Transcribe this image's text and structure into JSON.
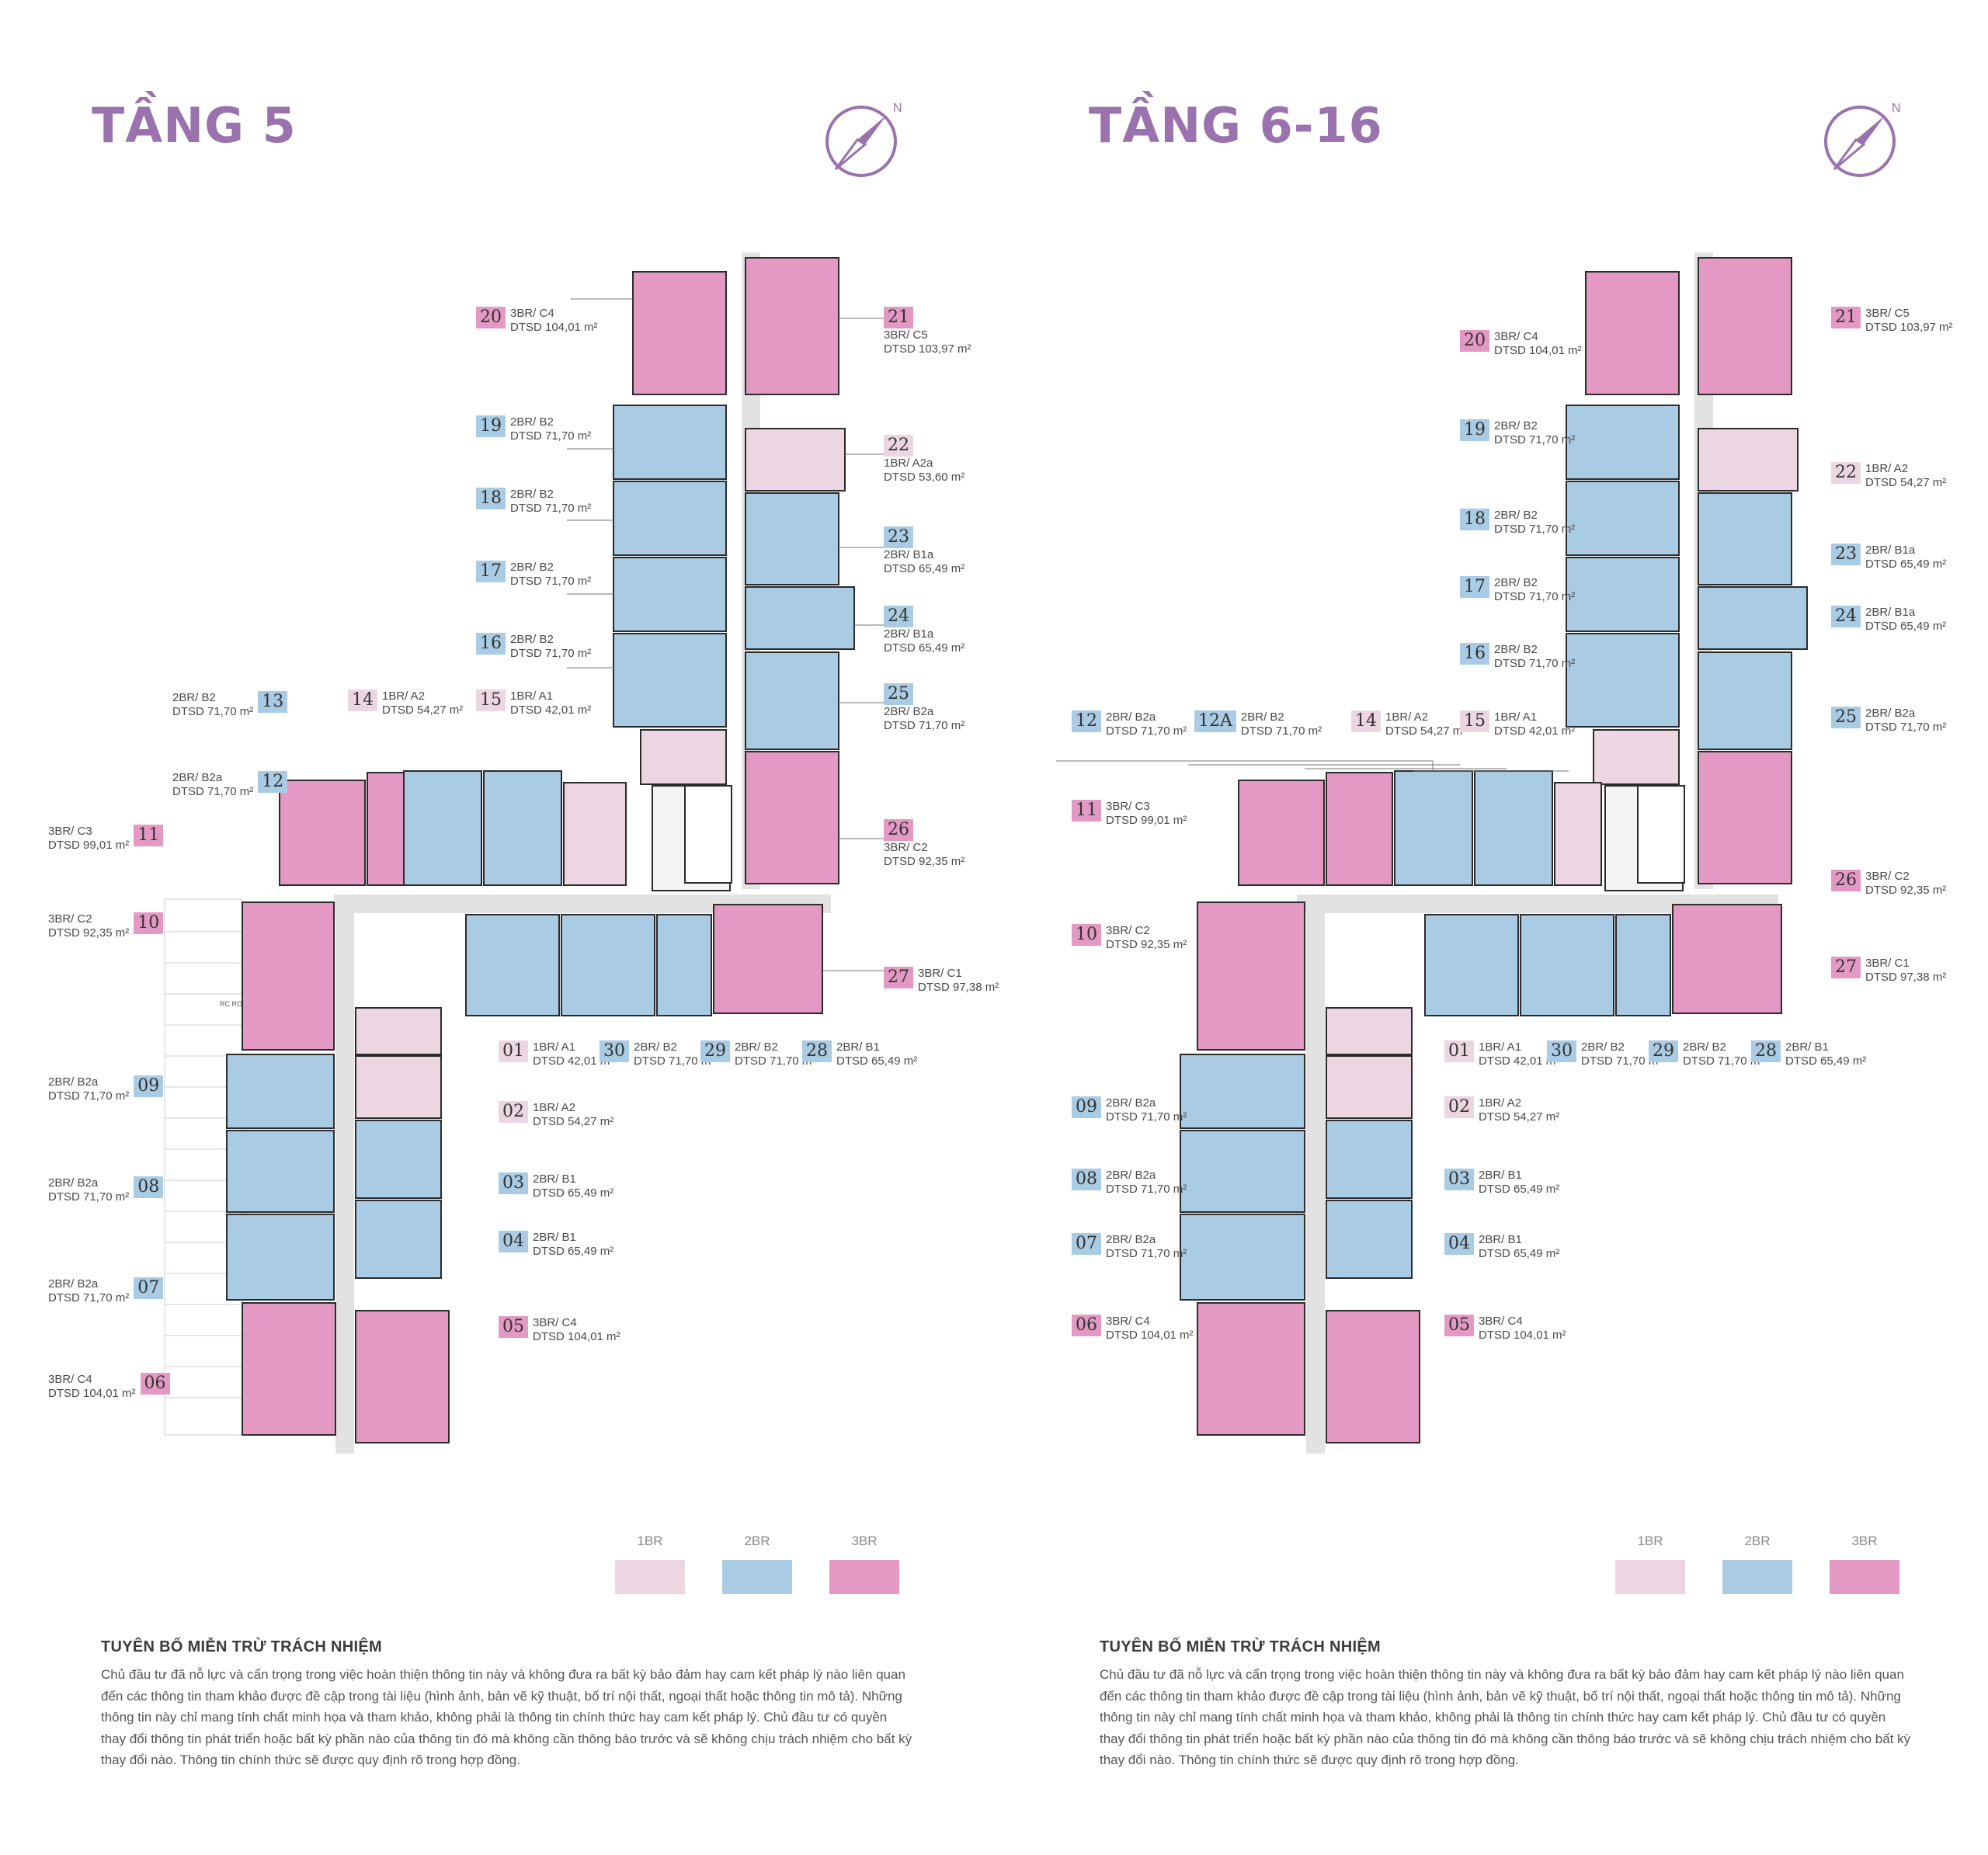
{
  "colors": {
    "title": "#9a72ad",
    "br1": "#ecd6e2",
    "br2": "#a9cbe3",
    "br3": "#e399c3",
    "corridor": "#e2e2e2",
    "wall": "#2b2b2b",
    "facade": "#bdbdbd"
  },
  "legend": {
    "br1": "1BR",
    "br2": "2BR",
    "br3": "3BR"
  },
  "disclaimer": {
    "heading": "TUYÊN BỐ MIỄN TRỪ TRÁCH NHIỆM",
    "body": "Chủ đầu tư đã nỗ lực và cẩn trọng trong việc hoàn thiện thông tin này và không đưa ra bất kỳ bảo đảm hay cam kết pháp lý nào liên quan đến các thông tin tham khảo được đề cập trong tài liệu (hình ảnh, bản vẽ kỹ thuật, bố trí nội thất, ngoại thất hoặc thông tin mô tả). Những thông tin này chỉ mang tính chất minh họa và tham khảo, không phải là thông tin chính thức hay cam kết pháp lý. Chủ đầu tư có quyền thay đổi thông tin phát triển hoặc bất kỳ phần nào của thông tin đó mà không cần thông báo trước và sẽ không chịu trách nhiệm cho bất kỳ thay đổi nào. Thông tin chính thức sẽ được quy định rõ trong hợp đồng."
  },
  "panels": [
    {
      "title": "TẦNG 5",
      "compass_icon": "compass-north-icon",
      "units": [
        {
          "no": "20",
          "type": "3BR/ C4",
          "area": "DTSD 104,01 m²",
          "cls": "n3"
        },
        {
          "no": "21",
          "type": "3BR/ C5",
          "area": "DTSD 103,97 m²",
          "cls": "n3"
        },
        {
          "no": "19",
          "type": "2BR/ B2",
          "area": "DTSD 71,70 m²",
          "cls": "n2"
        },
        {
          "no": "22",
          "type": "1BR/ A2a",
          "area": "DTSD 53,60 m²",
          "cls": "n1"
        },
        {
          "no": "18",
          "type": "2BR/ B2",
          "area": "DTSD 71,70 m²",
          "cls": "n2"
        },
        {
          "no": "23",
          "type": "2BR/ B1a",
          "area": "DTSD 65,49 m²",
          "cls": "n2"
        },
        {
          "no": "17",
          "type": "2BR/ B2",
          "area": "DTSD 71,70 m²",
          "cls": "n2"
        },
        {
          "no": "24",
          "type": "2BR/ B1a",
          "area": "DTSD 65,49 m²",
          "cls": "n2"
        },
        {
          "no": "16",
          "type": "2BR/ B2",
          "area": "DTSD 71,70 m²",
          "cls": "n2"
        },
        {
          "no": "25",
          "type": "2BR/ B2a",
          "area": "DTSD 71,70 m²",
          "cls": "n2"
        },
        {
          "no": "13",
          "type": "2BR/ B2",
          "area": "DTSD 71,70 m²",
          "cls": "n2"
        },
        {
          "no": "14",
          "type": "1BR/ A2",
          "area": "DTSD 54,27 m²",
          "cls": "n1"
        },
        {
          "no": "15",
          "type": "1BR/ A1",
          "area": "DTSD 42,01 m²",
          "cls": "n1"
        },
        {
          "no": "12",
          "type": "2BR/ B2a",
          "area": "DTSD 71,70 m²",
          "cls": "n2"
        },
        {
          "no": "26",
          "type": "3BR/ C2",
          "area": "DTSD 92,35 m²",
          "cls": "n3"
        },
        {
          "no": "11",
          "type": "3BR/ C3",
          "area": "DTSD 99,01 m²",
          "cls": "n3"
        },
        {
          "no": "10",
          "type": "3BR/ C2",
          "area": "DTSD 92,35 m²",
          "cls": "n3"
        },
        {
          "no": "27",
          "type": "3BR/ C1",
          "area": "DTSD 97,38 m²",
          "cls": "n3"
        },
        {
          "no": "01",
          "type": "1BR/ A1",
          "area": "DTSD 42,01 m²",
          "cls": "n1"
        },
        {
          "no": "30",
          "type": "2BR/ B2",
          "area": "DTSD 71,70 m²",
          "cls": "n2"
        },
        {
          "no": "29",
          "type": "2BR/ B2",
          "area": "DTSD 71,70 m²",
          "cls": "n2"
        },
        {
          "no": "28",
          "type": "2BR/ B1",
          "area": "DTSD 65,49 m²",
          "cls": "n2"
        },
        {
          "no": "09",
          "type": "2BR/ B2a",
          "area": "DTSD 71,70 m²",
          "cls": "n2"
        },
        {
          "no": "02",
          "type": "1BR/ A2",
          "area": "DTSD 54,27 m²",
          "cls": "n1"
        },
        {
          "no": "08",
          "type": "2BR/ B2a",
          "area": "DTSD 71,70 m²",
          "cls": "n2"
        },
        {
          "no": "03",
          "type": "2BR/ B1",
          "area": "DTSD 65,49 m²",
          "cls": "n2"
        },
        {
          "no": "04",
          "type": "2BR/ B1",
          "area": "DTSD 65,49 m²",
          "cls": "n2"
        },
        {
          "no": "07",
          "type": "2BR/ B2a",
          "area": "DTSD 71,70 m²",
          "cls": "n2"
        },
        {
          "no": "05",
          "type": "3BR/ C4",
          "area": "DTSD 104,01 m²",
          "cls": "n3"
        },
        {
          "no": "06",
          "type": "3BR/ C4",
          "area": "DTSD 104,01 m²",
          "cls": "n3"
        }
      ],
      "roof_label": "RC ROOF"
    },
    {
      "title": "TẦNG 6-16",
      "compass_icon": "compass-north-icon",
      "units": [
        {
          "no": "20",
          "type": "3BR/ C4",
          "area": "DTSD 104,01 m²",
          "cls": "n3"
        },
        {
          "no": "21",
          "type": "3BR/ C5",
          "area": "DTSD 103,97 m²",
          "cls": "n3"
        },
        {
          "no": "19",
          "type": "2BR/ B2",
          "area": "DTSD 71,70 m²",
          "cls": "n2"
        },
        {
          "no": "22",
          "type": "1BR/ A2",
          "area": "DTSD 54,27 m²",
          "cls": "n1"
        },
        {
          "no": "18",
          "type": "2BR/ B2",
          "area": "DTSD 71,70 m²",
          "cls": "n2"
        },
        {
          "no": "23",
          "type": "2BR/ B1a",
          "area": "DTSD 65,49 m²",
          "cls": "n2"
        },
        {
          "no": "17",
          "type": "2BR/ B2",
          "area": "DTSD 71,70 m²",
          "cls": "n2"
        },
        {
          "no": "24",
          "type": "2BR/ B1a",
          "area": "DTSD 65,49 m²",
          "cls": "n2"
        },
        {
          "no": "16",
          "type": "2BR/ B2",
          "area": "DTSD 71,70 m²",
          "cls": "n2"
        },
        {
          "no": "25",
          "type": "2BR/ B2a",
          "area": "DTSD 71,70 m²",
          "cls": "n2"
        },
        {
          "no": "12",
          "type": "2BR/ B2a",
          "area": "DTSD 71,70 m²",
          "cls": "n2"
        },
        {
          "no": "12A",
          "type": "2BR/ B2",
          "area": "DTSD 71,70 m²",
          "cls": "n2"
        },
        {
          "no": "14",
          "type": "1BR/ A2",
          "area": "DTSD 54,27 m²",
          "cls": "n1"
        },
        {
          "no": "15",
          "type": "1BR/ A1",
          "area": "DTSD 42,01 m²",
          "cls": "n1"
        },
        {
          "no": "11",
          "type": "3BR/ C3",
          "area": "DTSD 99,01 m²",
          "cls": "n3"
        },
        {
          "no": "26",
          "type": "3BR/ C2",
          "area": "DTSD 92,35 m²",
          "cls": "n3"
        },
        {
          "no": "10",
          "type": "3BR/ C2",
          "area": "DTSD 92,35 m²",
          "cls": "n3"
        },
        {
          "no": "27",
          "type": "3BR/ C1",
          "area": "DTSD 97,38 m²",
          "cls": "n3"
        },
        {
          "no": "01",
          "type": "1BR/ A1",
          "area": "DTSD 42,01 m²",
          "cls": "n1"
        },
        {
          "no": "30",
          "type": "2BR/ B2",
          "area": "DTSD 71,70 m²",
          "cls": "n2"
        },
        {
          "no": "29",
          "type": "2BR/ B2",
          "area": "DTSD 71,70 m²",
          "cls": "n2"
        },
        {
          "no": "28",
          "type": "2BR/ B1",
          "area": "DTSD 65,49 m²",
          "cls": "n2"
        },
        {
          "no": "09",
          "type": "2BR/ B2a",
          "area": "DTSD 71,70 m²",
          "cls": "n2"
        },
        {
          "no": "02",
          "type": "1BR/ A2",
          "area": "DTSD 54,27 m²",
          "cls": "n1"
        },
        {
          "no": "08",
          "type": "2BR/ B2a",
          "area": "DTSD 71,70 m²",
          "cls": "n2"
        },
        {
          "no": "03",
          "type": "2BR/ B1",
          "area": "DTSD 65,49 m²",
          "cls": "n2"
        },
        {
          "no": "07",
          "type": "2BR/ B2a",
          "area": "DTSD 71,70 m²",
          "cls": "n2"
        },
        {
          "no": "04",
          "type": "2BR/ B1",
          "area": "DTSD 65,49 m²",
          "cls": "n2"
        },
        {
          "no": "06",
          "type": "3BR/ C4",
          "area": "DTSD 104,01 m²",
          "cls": "n3"
        },
        {
          "no": "05",
          "type": "3BR/ C4",
          "area": "DTSD 104,01 m²",
          "cls": "n3"
        }
      ]
    }
  ]
}
